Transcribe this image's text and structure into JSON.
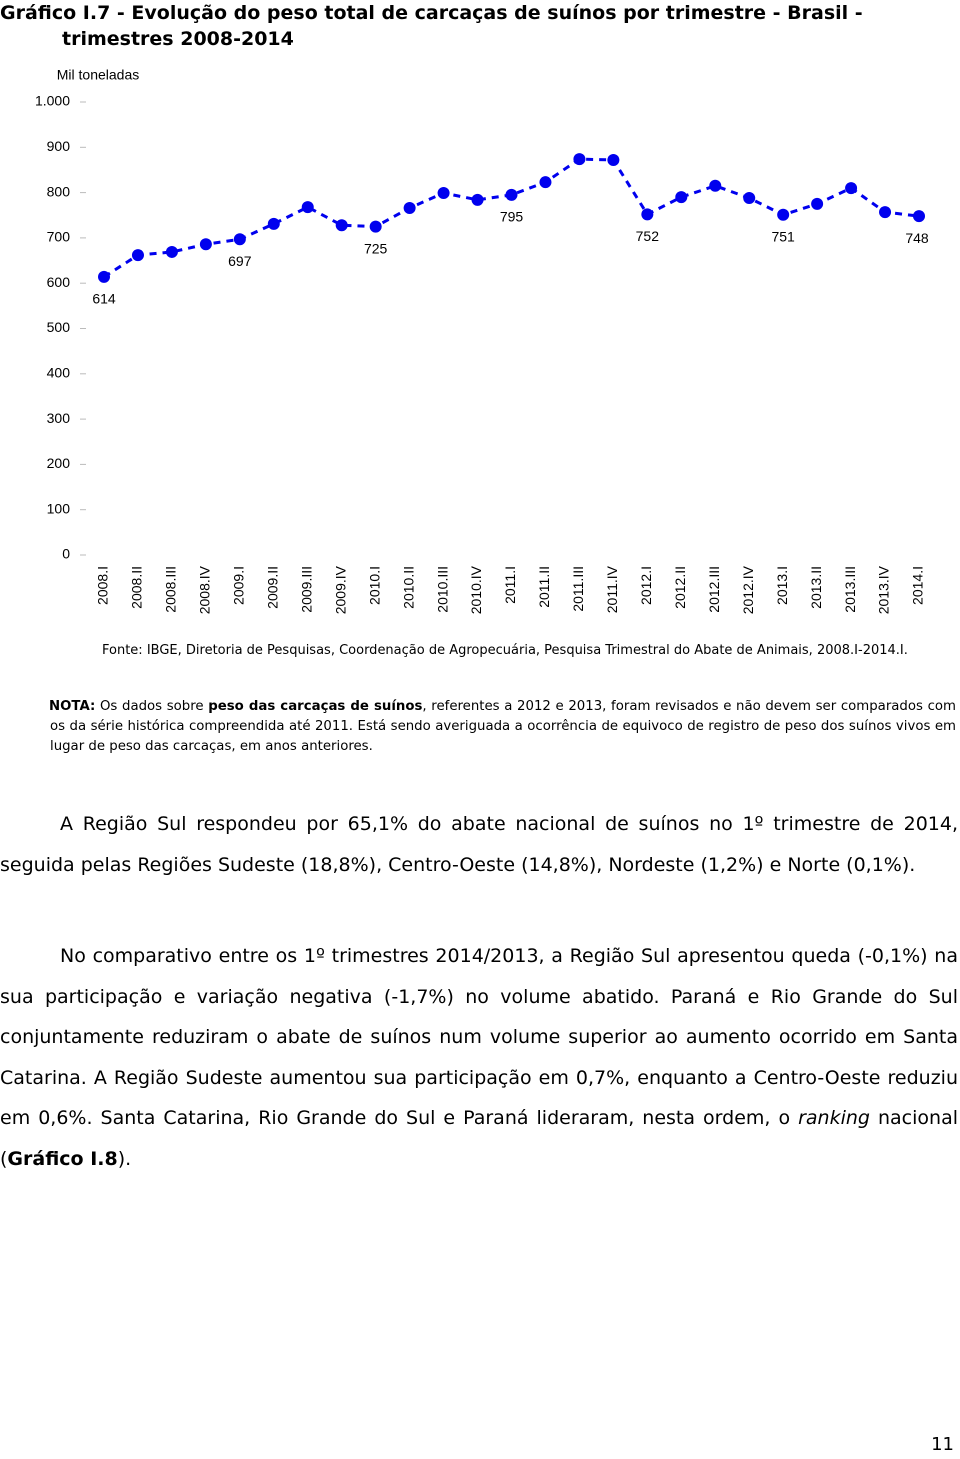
{
  "chart_data": {
    "type": "line",
    "title": "Gráfico I.7 - Evolução do peso total de carcaças de suínos por trimestre - Brasil - trimestres 2008-2014",
    "y_label": "Mil toneladas",
    "categories": [
      "2008.I",
      "2008.II",
      "2008.III",
      "2008.IV",
      "2009.I",
      "2009.II",
      "2009.III",
      "2009.IV",
      "2010.I",
      "2010.II",
      "2010.III",
      "2010.IV",
      "2011.I",
      "2011.II",
      "2011.III",
      "2011.IV",
      "2012.I",
      "2012.II",
      "2012.III",
      "2012.IV",
      "2013.I",
      "2013.II",
      "2013.III",
      "2013.IV",
      "2014.I"
    ],
    "series": [
      {
        "name": "Peso total de carcaças",
        "color": "#0000ee",
        "values": [
          614,
          662,
          669,
          686,
          697,
          731,
          768,
          728,
          725,
          766,
          799,
          784,
          795,
          823,
          874,
          872,
          752,
          790,
          815,
          788,
          751,
          775,
          810,
          757,
          748
        ]
      }
    ],
    "ylim": [
      0,
      1000
    ],
    "yticks": [
      0,
      100,
      200,
      300,
      400,
      500,
      600,
      700,
      800,
      900,
      {
        "value": 1000,
        "label": "1.000"
      }
    ],
    "grid": false
  },
  "source": "Fonte: IBGE, Diretoria de Pesquisas, Coordenação de Agropecuária, Pesquisa Trimestral do Abate de Animais, 2008.I-2014.I.",
  "note": {
    "label": "NOTA:",
    "text_1": " Os dados sobre ",
    "bold": "peso das carcaças de suínos",
    "text_2": ", referentes a 2012 e 2013, foram revisados e não devem ser comparados com os da série histórica compreendida até 2011. Está sendo averiguada a ocorrência de equivoco de registro de peso dos suínos vivos em lugar de peso das carcaças, em anos anteriores."
  },
  "paragraphs": [
    {
      "text": "A Região Sul respondeu por 65,1% do abate nacional de suínos no 1º trimestre de 2014, seguida pelas Regiões Sudeste (18,8%), Centro-Oeste (14,8%), Nordeste (1,2%) e Norte (0,1%)."
    },
    {
      "text_1": "No comparativo entre os 1º trimestres 2014/2013, a Região Sul apresentou queda (-0,1%) na sua participação e variação negativa (-1,7%) no volume abatido. Paraná e Rio Grande do Sul conjuntamente reduziram o abate de suínos num volume superior ao aumento ocorrido em Santa Catarina. A Região Sudeste aumentou sua participação em 0,7%, enquanto a Centro-Oeste reduziu em 0,6%. Santa Catarina, Rio Grande do Sul e Paraná lideraram, nesta ordem, o ",
      "italic": "ranking",
      "text_2": " nacional (",
      "bold": "Gráfico I.8",
      "text_3": ")."
    }
  ],
  "page_number": "11"
}
